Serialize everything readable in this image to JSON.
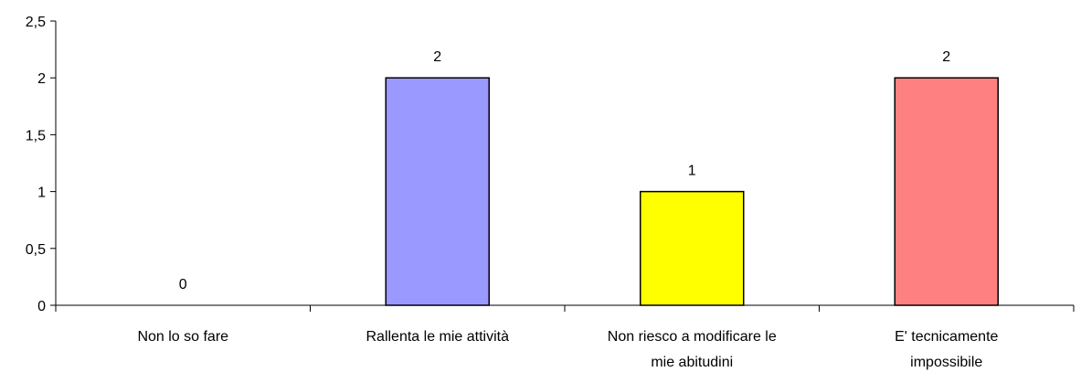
{
  "chart_data": {
    "type": "bar",
    "categories": [
      [
        "Non lo so fare"
      ],
      [
        "Rallenta le mie attività"
      ],
      [
        "Non riesco a modificare le",
        "mie abitudini"
      ],
      [
        "E' tecnicamente",
        "impossibile"
      ]
    ],
    "values": [
      0,
      2,
      1,
      2
    ],
    "data_labels": [
      "0",
      "2",
      "1",
      "2"
    ],
    "bar_colors": [
      "#9999ff",
      "#9999ff",
      "#ffff00",
      "#ff8080"
    ],
    "ylim": [
      0,
      2.5
    ],
    "yticks": [
      0,
      0.5,
      1,
      1.5,
      2,
      2.5
    ],
    "ytick_labels": [
      "0",
      "0,5",
      "1",
      "1,5",
      "2",
      "2,5"
    ],
    "grid": false,
    "legend": false
  }
}
